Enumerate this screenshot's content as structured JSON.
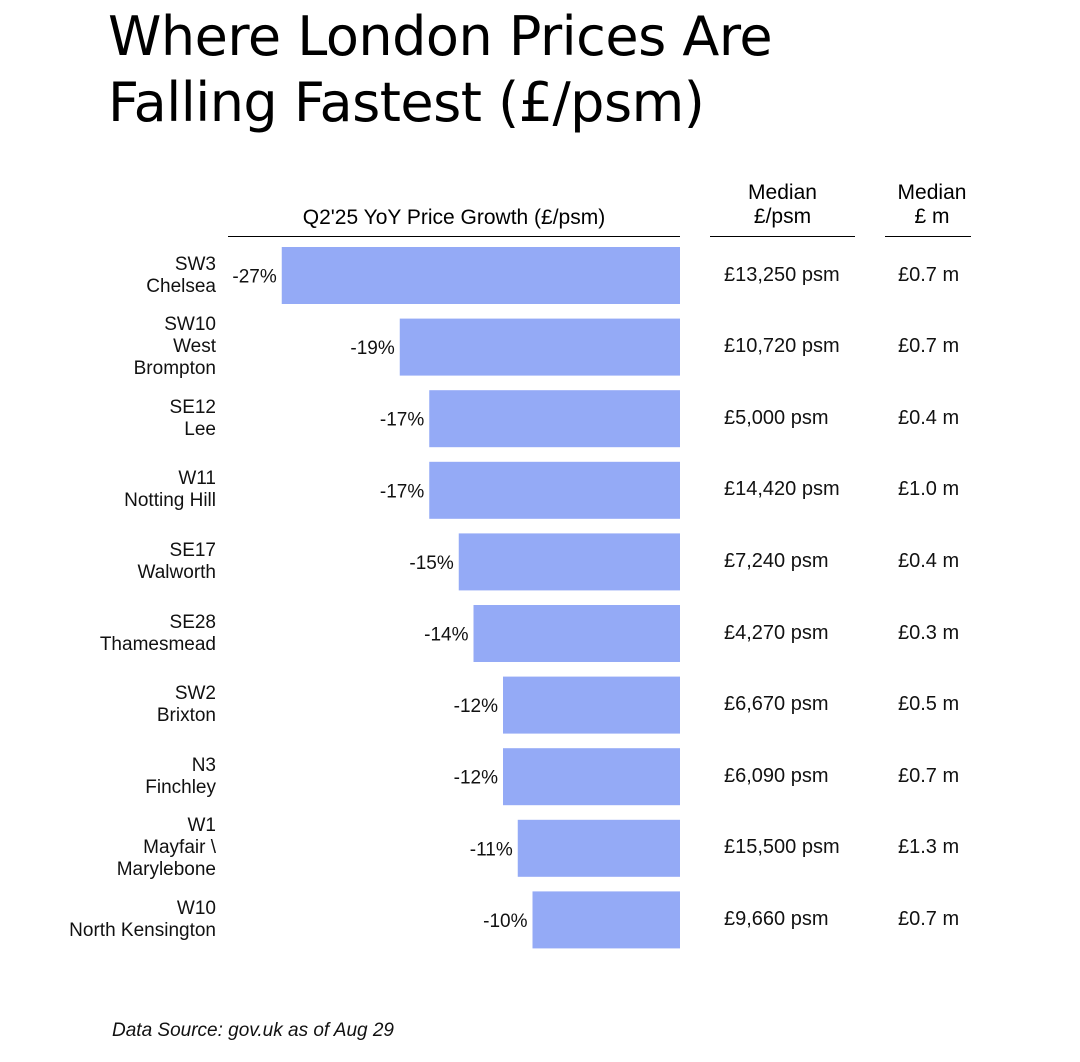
{
  "title": [
    "Where London Prices Are",
    "Falling Fastest (£/psm)"
  ],
  "columns": {
    "growth": "Q2'25 YoY Price Growth (£/psm)",
    "psm": [
      "Median",
      "£/psm"
    ],
    "m": [
      "Median",
      "£ m"
    ]
  },
  "chart_data": {
    "type": "bar",
    "orientation": "horizontal",
    "title": "Q2'25 YoY Price Growth (£/psm)",
    "xlabel": "",
    "ylabel": "",
    "xlim": [
      -30,
      0
    ],
    "categories": [
      "SW3 Chelsea",
      "SW10 West Brompton",
      "SE12 Lee",
      "W11 Notting Hill",
      "SE17 Walworth",
      "SE28 Thamesmead",
      "SW2 Brixton",
      "N3 Finchley",
      "W1 Mayfair \\ Marylebone",
      "W10 North Kensington"
    ],
    "values": [
      -27,
      -19,
      -17,
      -17,
      -15,
      -14,
      -12,
      -12,
      -11,
      -10
    ],
    "bar_color": "#94aaf6"
  },
  "rows": [
    {
      "code": "SW3",
      "area": [
        "Chelsea"
      ],
      "growth_label": "-27%",
      "psm": "£13,250 psm",
      "m": "£0.7 m"
    },
    {
      "code": "SW10",
      "area": [
        "West",
        "Brompton"
      ],
      "growth_label": "-19%",
      "psm": "£10,720 psm",
      "m": "£0.7 m"
    },
    {
      "code": "SE12",
      "area": [
        "Lee"
      ],
      "growth_label": "-17%",
      "psm": "£5,000 psm",
      "m": "£0.4 m"
    },
    {
      "code": "W11",
      "area": [
        "Notting Hill"
      ],
      "growth_label": "-17%",
      "psm": "£14,420 psm",
      "m": "£1.0 m"
    },
    {
      "code": "SE17",
      "area": [
        "Walworth"
      ],
      "growth_label": "-15%",
      "psm": "£7,240 psm",
      "m": "£0.4 m"
    },
    {
      "code": "SE28",
      "area": [
        "Thamesmead"
      ],
      "growth_label": "-14%",
      "psm": "£4,270 psm",
      "m": "£0.3 m"
    },
    {
      "code": "SW2",
      "area": [
        "Brixton"
      ],
      "growth_label": "-12%",
      "psm": "£6,670 psm",
      "m": "£0.5 m"
    },
    {
      "code": "N3",
      "area": [
        "Finchley"
      ],
      "growth_label": "-12%",
      "psm": "£6,090 psm",
      "m": "£0.7 m"
    },
    {
      "code": "W1",
      "area": [
        "Mayfair \\",
        "Marylebone"
      ],
      "growth_label": "-11%",
      "psm": "£15,500 psm",
      "m": "£1.3 m"
    },
    {
      "code": "W10",
      "area": [
        "North Kensington"
      ],
      "growth_label": "-10%",
      "psm": "£9,660 psm",
      "m": "£0.7 m"
    }
  ],
  "source": "Data Source: gov.uk as of Aug 29"
}
